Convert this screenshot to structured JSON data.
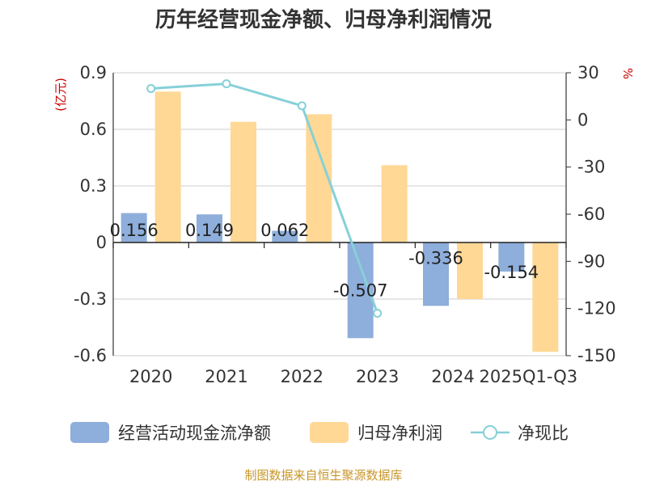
{
  "chart_data": {
    "type": "bar",
    "title": "历年经营现金净额、归母净利润情况",
    "categories": [
      "2020",
      "2021",
      "2022",
      "2023",
      "2024",
      "2025Q1-Q3"
    ],
    "series": [
      {
        "name": "经营活动现金流净额",
        "axis": "left",
        "kind": "bar",
        "color": "#8eaedb",
        "values": [
          0.156,
          0.149,
          0.062,
          -0.507,
          -0.336,
          -0.154
        ],
        "labels": [
          "0.156",
          "0.149",
          "0.062",
          "-0.507",
          "-0.336",
          "-0.154"
        ]
      },
      {
        "name": "归母净利润",
        "axis": "left",
        "kind": "bar",
        "color": "#ffd896",
        "values": [
          0.8,
          0.64,
          0.68,
          0.41,
          -0.3,
          -0.58
        ]
      },
      {
        "name": "净现比",
        "axis": "right",
        "kind": "line",
        "color": "#86d0d8",
        "values": [
          20,
          23,
          9,
          -123,
          null,
          null
        ]
      }
    ],
    "left_axis": {
      "unit": "(亿元)",
      "ylim": [
        -0.6,
        0.9
      ],
      "ticks": [
        -0.6,
        -0.3,
        0,
        0.3,
        0.6,
        0.9
      ],
      "tick_labels": [
        "-0.6",
        "-0.3",
        "0",
        "0.3",
        "0.6",
        "0.9"
      ]
    },
    "right_axis": {
      "unit": "%",
      "ylim": [
        -150,
        30
      ],
      "ticks": [
        -150,
        -120,
        -90,
        -60,
        -30,
        0,
        30
      ],
      "tick_labels": [
        "-150",
        "-120",
        "-90",
        "-60",
        "-30",
        "0",
        "30"
      ]
    },
    "legend": [
      "经营活动现金流净额",
      "归母净利润",
      "净现比"
    ],
    "source": "制图数据来自恒生聚源数据库"
  }
}
